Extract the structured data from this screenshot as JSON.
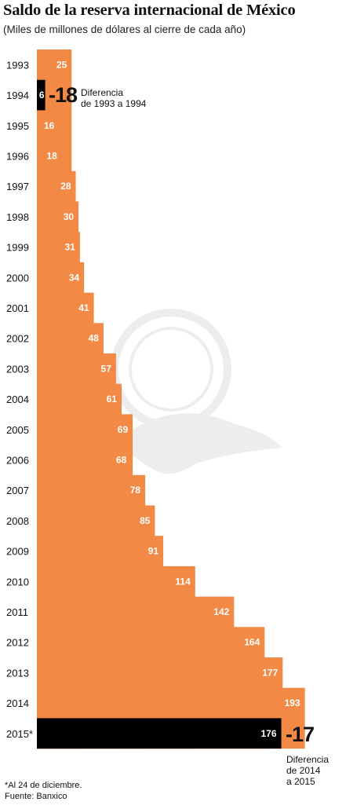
{
  "title": "Saldo de la reserva internacional de México",
  "subtitle": "(Miles de millones de dólares al cierre de cada año)",
  "chart_data": {
    "type": "bar",
    "orientation": "horizontal",
    "categories": [
      "1993",
      "1994",
      "1995",
      "1996",
      "1997",
      "1998",
      "1999",
      "2000",
      "2001",
      "2002",
      "2003",
      "2004",
      "2005",
      "2006",
      "2007",
      "2008",
      "2009",
      "2010",
      "2011",
      "2012",
      "2013",
      "2014",
      "2015*"
    ],
    "values": [
      25,
      6,
      16,
      18,
      28,
      30,
      31,
      34,
      41,
      48,
      57,
      61,
      69,
      68,
      78,
      85,
      91,
      114,
      142,
      164,
      177,
      193,
      176
    ],
    "highlight_color": "#000000",
    "bar_color": "#f28a45",
    "highlighted": [
      "1994",
      "2015*"
    ]
  },
  "annotations": [
    {
      "value": "-18",
      "text_line1": "Diferencia",
      "text_line2": "de 1993 a 1994"
    },
    {
      "value": "-17",
      "text_line1": "Diferencia",
      "text_line2": "de 2014",
      "text_line3": "a 2015"
    }
  ],
  "footnote": "*Al 24 de diciembre.",
  "source": "Fuente: Banxico"
}
